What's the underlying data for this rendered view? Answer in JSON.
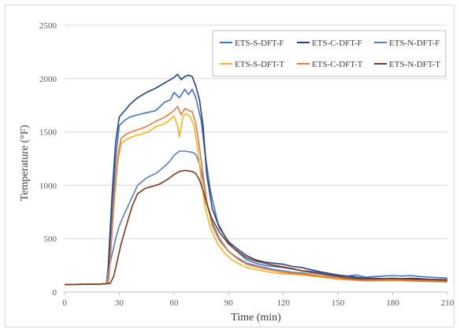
{
  "chart_data": {
    "type": "line",
    "title": "",
    "xlabel": "Time (min)",
    "ylabel": "Temperature (°F)",
    "xlim": [
      0,
      210
    ],
    "ylim": [
      0,
      2500
    ],
    "xticks": [
      0,
      30,
      60,
      90,
      120,
      150,
      180,
      210
    ],
    "yticks": [
      0,
      500,
      1000,
      1500,
      2000,
      2500
    ],
    "grid": "horizontal",
    "legend_position": "top-right",
    "series": [
      {
        "name": "ETS-S-DFT-F",
        "color": "#4472c4",
        "points": [
          [
            0,
            70
          ],
          [
            10,
            72
          ],
          [
            20,
            75
          ],
          [
            23,
            78
          ],
          [
            24,
            200
          ],
          [
            26,
            700
          ],
          [
            28,
            1250
          ],
          [
            30,
            1560
          ],
          [
            33,
            1610
          ],
          [
            36,
            1640
          ],
          [
            40,
            1660
          ],
          [
            45,
            1680
          ],
          [
            50,
            1700
          ],
          [
            55,
            1780
          ],
          [
            58,
            1800
          ],
          [
            60,
            1870
          ],
          [
            63,
            1820
          ],
          [
            66,
            1900
          ],
          [
            68,
            1850
          ],
          [
            70,
            1900
          ],
          [
            72,
            1820
          ],
          [
            75,
            1600
          ],
          [
            77,
            1300
          ],
          [
            80,
            950
          ],
          [
            84,
            650
          ],
          [
            88,
            520
          ],
          [
            92,
            420
          ],
          [
            96,
            360
          ],
          [
            100,
            300
          ],
          [
            105,
            270
          ],
          [
            110,
            250
          ],
          [
            115,
            240
          ],
          [
            120,
            230
          ],
          [
            125,
            215
          ],
          [
            130,
            200
          ],
          [
            135,
            195
          ],
          [
            140,
            180
          ],
          [
            145,
            165
          ],
          [
            150,
            155
          ],
          [
            155,
            150
          ],
          [
            160,
            160
          ],
          [
            165,
            140
          ],
          [
            170,
            145
          ],
          [
            175,
            150
          ],
          [
            180,
            155
          ],
          [
            185,
            150
          ],
          [
            190,
            155
          ],
          [
            195,
            145
          ],
          [
            200,
            140
          ],
          [
            205,
            135
          ],
          [
            210,
            130
          ]
        ]
      },
      {
        "name": "ETS-C-DFT-F",
        "color": "#264478",
        "points": [
          [
            0,
            70
          ],
          [
            10,
            72
          ],
          [
            20,
            75
          ],
          [
            23,
            78
          ],
          [
            24,
            250
          ],
          [
            26,
            900
          ],
          [
            28,
            1400
          ],
          [
            30,
            1640
          ],
          [
            33,
            1700
          ],
          [
            36,
            1760
          ],
          [
            40,
            1820
          ],
          [
            45,
            1870
          ],
          [
            50,
            1910
          ],
          [
            55,
            1960
          ],
          [
            58,
            1990
          ],
          [
            60,
            2010
          ],
          [
            62,
            2040
          ],
          [
            64,
            1990
          ],
          [
            66,
            2020
          ],
          [
            68,
            2030
          ],
          [
            70,
            2020
          ],
          [
            72,
            1930
          ],
          [
            74,
            1800
          ],
          [
            76,
            1550
          ],
          [
            78,
            1100
          ],
          [
            81,
            780
          ],
          [
            85,
            600
          ],
          [
            90,
            470
          ],
          [
            95,
            400
          ],
          [
            100,
            340
          ],
          [
            105,
            300
          ],
          [
            110,
            280
          ],
          [
            115,
            270
          ],
          [
            120,
            260
          ],
          [
            125,
            240
          ],
          [
            130,
            230
          ],
          [
            135,
            210
          ],
          [
            140,
            190
          ],
          [
            145,
            175
          ],
          [
            150,
            160
          ],
          [
            155,
            150
          ],
          [
            160,
            140
          ],
          [
            165,
            130
          ],
          [
            170,
            130
          ],
          [
            175,
            125
          ],
          [
            180,
            130
          ],
          [
            185,
            125
          ],
          [
            190,
            130
          ],
          [
            195,
            125
          ],
          [
            200,
            120
          ],
          [
            205,
            118
          ],
          [
            210,
            115
          ]
        ]
      },
      {
        "name": "ETS-N-DFT-F",
        "color": "#5b7fb8",
        "points": [
          [
            0,
            70
          ],
          [
            10,
            72
          ],
          [
            20,
            75
          ],
          [
            23,
            78
          ],
          [
            24,
            200
          ],
          [
            26,
            350
          ],
          [
            28,
            500
          ],
          [
            30,
            620
          ],
          [
            33,
            740
          ],
          [
            36,
            850
          ],
          [
            40,
            1000
          ],
          [
            45,
            1070
          ],
          [
            50,
            1110
          ],
          [
            55,
            1180
          ],
          [
            58,
            1230
          ],
          [
            60,
            1280
          ],
          [
            63,
            1320
          ],
          [
            66,
            1320
          ],
          [
            70,
            1310
          ],
          [
            72,
            1290
          ],
          [
            74,
            1200
          ],
          [
            76,
            1050
          ],
          [
            78,
            850
          ],
          [
            81,
            650
          ],
          [
            85,
            500
          ],
          [
            90,
            380
          ],
          [
            95,
            320
          ],
          [
            100,
            270
          ],
          [
            105,
            250
          ],
          [
            110,
            230
          ],
          [
            115,
            210
          ],
          [
            120,
            200
          ],
          [
            125,
            185
          ],
          [
            130,
            180
          ],
          [
            135,
            165
          ],
          [
            140,
            150
          ],
          [
            145,
            140
          ],
          [
            150,
            130
          ],
          [
            155,
            125
          ],
          [
            160,
            120
          ],
          [
            165,
            118
          ],
          [
            170,
            120
          ],
          [
            175,
            122
          ],
          [
            180,
            125
          ],
          [
            185,
            120
          ],
          [
            190,
            118
          ],
          [
            195,
            115
          ],
          [
            200,
            112
          ],
          [
            205,
            110
          ],
          [
            210,
            108
          ]
        ]
      },
      {
        "name": "ETS-S-DFT-T",
        "color": "#f4b321",
        "points": [
          [
            0,
            70
          ],
          [
            10,
            72
          ],
          [
            20,
            75
          ],
          [
            24,
            80
          ],
          [
            25,
            300
          ],
          [
            27,
            800
          ],
          [
            29,
            1200
          ],
          [
            31,
            1390
          ],
          [
            34,
            1430
          ],
          [
            38,
            1460
          ],
          [
            42,
            1480
          ],
          [
            46,
            1500
          ],
          [
            50,
            1550
          ],
          [
            54,
            1570
          ],
          [
            57,
            1600
          ],
          [
            60,
            1650
          ],
          [
            62,
            1560
          ],
          [
            63,
            1450
          ],
          [
            65,
            1650
          ],
          [
            67,
            1670
          ],
          [
            69,
            1640
          ],
          [
            71,
            1560
          ],
          [
            73,
            1350
          ],
          [
            75,
            1050
          ],
          [
            77,
            800
          ],
          [
            80,
            600
          ],
          [
            84,
            450
          ],
          [
            88,
            360
          ],
          [
            92,
            300
          ],
          [
            96,
            260
          ],
          [
            100,
            230
          ],
          [
            105,
            210
          ],
          [
            110,
            195
          ],
          [
            115,
            180
          ],
          [
            120,
            170
          ],
          [
            125,
            165
          ],
          [
            130,
            160
          ],
          [
            135,
            150
          ],
          [
            140,
            140
          ],
          [
            145,
            130
          ],
          [
            150,
            120
          ],
          [
            155,
            115
          ],
          [
            160,
            110
          ],
          [
            165,
            105
          ],
          [
            170,
            105
          ],
          [
            175,
            105
          ],
          [
            180,
            108
          ],
          [
            185,
            105
          ],
          [
            190,
            102
          ],
          [
            195,
            100
          ],
          [
            200,
            98
          ],
          [
            205,
            95
          ],
          [
            210,
            93
          ]
        ]
      },
      {
        "name": "ETS-C-DFT-T",
        "color": "#e07b48",
        "points": [
          [
            0,
            70
          ],
          [
            10,
            72
          ],
          [
            20,
            75
          ],
          [
            24,
            80
          ],
          [
            25,
            300
          ],
          [
            27,
            850
          ],
          [
            29,
            1250
          ],
          [
            31,
            1440
          ],
          [
            34,
            1480
          ],
          [
            38,
            1510
          ],
          [
            42,
            1530
          ],
          [
            46,
            1560
          ],
          [
            50,
            1600
          ],
          [
            54,
            1630
          ],
          [
            57,
            1660
          ],
          [
            60,
            1700
          ],
          [
            62,
            1740
          ],
          [
            64,
            1660
          ],
          [
            66,
            1720
          ],
          [
            68,
            1700
          ],
          [
            70,
            1690
          ],
          [
            72,
            1580
          ],
          [
            74,
            1350
          ],
          [
            76,
            1100
          ],
          [
            78,
            850
          ],
          [
            81,
            620
          ],
          [
            85,
            480
          ],
          [
            90,
            380
          ],
          [
            95,
            310
          ],
          [
            100,
            260
          ],
          [
            105,
            235
          ],
          [
            110,
            215
          ],
          [
            115,
            200
          ],
          [
            120,
            185
          ],
          [
            125,
            175
          ],
          [
            130,
            170
          ],
          [
            135,
            160
          ],
          [
            140,
            150
          ],
          [
            145,
            138
          ],
          [
            150,
            128
          ],
          [
            155,
            120
          ],
          [
            160,
            112
          ],
          [
            165,
            108
          ],
          [
            170,
            108
          ],
          [
            175,
            110
          ],
          [
            180,
            112
          ],
          [
            185,
            110
          ],
          [
            190,
            108
          ],
          [
            195,
            105
          ],
          [
            200,
            102
          ],
          [
            205,
            100
          ],
          [
            210,
            98
          ]
        ]
      },
      {
        "name": "ETS-N-DFT-T",
        "color": "#7a3b1c",
        "points": [
          [
            0,
            70
          ],
          [
            10,
            72
          ],
          [
            20,
            75
          ],
          [
            25,
            80
          ],
          [
            27,
            150
          ],
          [
            29,
            300
          ],
          [
            31,
            450
          ],
          [
            34,
            630
          ],
          [
            37,
            800
          ],
          [
            40,
            920
          ],
          [
            44,
            970
          ],
          [
            48,
            990
          ],
          [
            52,
            1010
          ],
          [
            56,
            1050
          ],
          [
            60,
            1100
          ],
          [
            63,
            1130
          ],
          [
            66,
            1140
          ],
          [
            70,
            1130
          ],
          [
            72,
            1110
          ],
          [
            74,
            1050
          ],
          [
            76,
            950
          ],
          [
            78,
            820
          ],
          [
            81,
            680
          ],
          [
            85,
            560
          ],
          [
            90,
            450
          ],
          [
            95,
            380
          ],
          [
            100,
            320
          ],
          [
            105,
            290
          ],
          [
            110,
            270
          ],
          [
            115,
            250
          ],
          [
            120,
            235
          ],
          [
            125,
            220
          ],
          [
            130,
            200
          ],
          [
            135,
            185
          ],
          [
            140,
            170
          ],
          [
            145,
            155
          ],
          [
            150,
            145
          ],
          [
            155,
            135
          ],
          [
            160,
            128
          ],
          [
            165,
            125
          ],
          [
            170,
            125
          ],
          [
            175,
            125
          ],
          [
            180,
            128
          ],
          [
            185,
            125
          ],
          [
            190,
            122
          ],
          [
            195,
            120
          ],
          [
            200,
            118
          ],
          [
            205,
            115
          ],
          [
            210,
            112
          ]
        ]
      }
    ]
  }
}
